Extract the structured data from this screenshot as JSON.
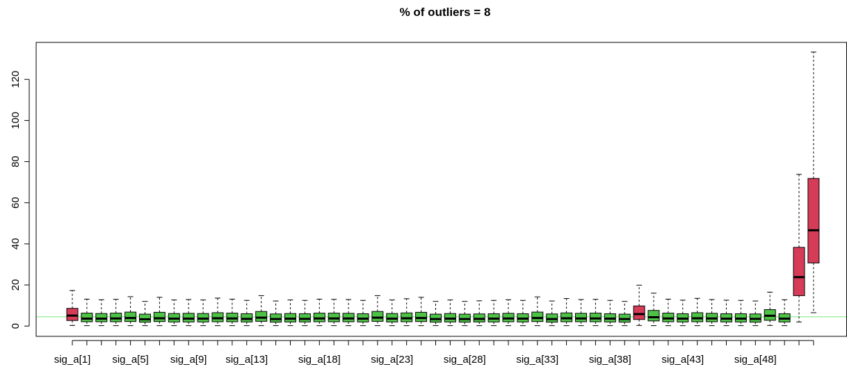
{
  "chart_data": {
    "type": "boxplot",
    "title": "% of outliers =  8",
    "xlabel": "",
    "ylabel": "",
    "ylim": [
      -5,
      138
    ],
    "yticks": [
      0,
      20,
      40,
      60,
      80,
      100,
      120
    ],
    "reference_line": {
      "y": 4.5,
      "color": "#90ee90"
    },
    "colors": {
      "normal": "#4ec246",
      "outlier": "#d63c58"
    },
    "x_tick_labels": [
      {
        "pos": 1,
        "label": "sig_a[1]"
      },
      {
        "pos": 5,
        "label": "sig_a[5]"
      },
      {
        "pos": 9,
        "label": "sig_a[9]"
      },
      {
        "pos": 13,
        "label": "sig_a[13]"
      },
      {
        "pos": 18,
        "label": "sig_a[18]"
      },
      {
        "pos": 23,
        "label": "sig_a[23]"
      },
      {
        "pos": 28,
        "label": "sig_a[28]"
      },
      {
        "pos": 33,
        "label": "sig_a[33]"
      },
      {
        "pos": 38,
        "label": "sig_a[38]"
      },
      {
        "pos": 43,
        "label": "sig_a[43]"
      },
      {
        "pos": 48,
        "label": "sig_a[48]"
      }
    ],
    "boxes": [
      {
        "pos": 1,
        "whisker_low": 0.3,
        "q1": 2.7,
        "median": 5.1,
        "q3": 8.6,
        "whisker_high": 17.3,
        "outlier": true
      },
      {
        "pos": 2,
        "whisker_low": 0.2,
        "q1": 2.1,
        "median": 3.6,
        "q3": 6.3,
        "whisker_high": 13.1,
        "outlier": false
      },
      {
        "pos": 3,
        "whisker_low": 0.2,
        "q1": 2.1,
        "median": 3.6,
        "q3": 6.1,
        "whisker_high": 12.8,
        "outlier": false
      },
      {
        "pos": 4,
        "whisker_low": 0.2,
        "q1": 2.1,
        "median": 3.7,
        "q3": 6.3,
        "whisker_high": 13.0,
        "outlier": false
      },
      {
        "pos": 5,
        "whisker_low": 0.2,
        "q1": 2.2,
        "median": 3.9,
        "q3": 6.8,
        "whisker_high": 14.3,
        "outlier": false
      },
      {
        "pos": 6,
        "whisker_low": 0.2,
        "q1": 1.9,
        "median": 3.3,
        "q3": 5.8,
        "whisker_high": 12.0,
        "outlier": false
      },
      {
        "pos": 7,
        "whisker_low": 0.2,
        "q1": 2.2,
        "median": 3.8,
        "q3": 6.7,
        "whisker_high": 14.0,
        "outlier": false
      },
      {
        "pos": 8,
        "whisker_low": 0.2,
        "q1": 2.0,
        "median": 3.6,
        "q3": 6.1,
        "whisker_high": 12.7,
        "outlier": false
      },
      {
        "pos": 9,
        "whisker_low": 0.2,
        "q1": 2.0,
        "median": 3.6,
        "q3": 6.2,
        "whisker_high": 12.9,
        "outlier": false
      },
      {
        "pos": 10,
        "whisker_low": 0.2,
        "q1": 2.0,
        "median": 3.6,
        "q3": 6.1,
        "whisker_high": 12.7,
        "outlier": false
      },
      {
        "pos": 11,
        "whisker_low": 0.2,
        "q1": 2.1,
        "median": 3.8,
        "q3": 6.5,
        "whisker_high": 13.6,
        "outlier": false
      },
      {
        "pos": 12,
        "whisker_low": 0.2,
        "q1": 2.1,
        "median": 3.7,
        "q3": 6.3,
        "whisker_high": 13.1,
        "outlier": false
      },
      {
        "pos": 13,
        "whisker_low": 0.2,
        "q1": 2.0,
        "median": 3.5,
        "q3": 6.0,
        "whisker_high": 12.5,
        "outlier": false
      },
      {
        "pos": 14,
        "whisker_low": 0.2,
        "q1": 2.3,
        "median": 4.1,
        "q3": 7.1,
        "whisker_high": 14.8,
        "outlier": false
      },
      {
        "pos": 15,
        "whisker_low": 0.2,
        "q1": 1.9,
        "median": 3.4,
        "q3": 5.9,
        "whisker_high": 12.2,
        "outlier": false
      },
      {
        "pos": 16,
        "whisker_low": 0.2,
        "q1": 2.0,
        "median": 3.6,
        "q3": 6.1,
        "whisker_high": 12.7,
        "outlier": false
      },
      {
        "pos": 17,
        "whisker_low": 0.2,
        "q1": 2.0,
        "median": 3.5,
        "q3": 6.0,
        "whisker_high": 12.5,
        "outlier": false
      },
      {
        "pos": 18,
        "whisker_low": 0.2,
        "q1": 2.1,
        "median": 3.7,
        "q3": 6.3,
        "whisker_high": 13.1,
        "outlier": false
      },
      {
        "pos": 19,
        "whisker_low": 0.2,
        "q1": 2.1,
        "median": 3.7,
        "q3": 6.3,
        "whisker_high": 13.0,
        "outlier": false
      },
      {
        "pos": 20,
        "whisker_low": 0.2,
        "q1": 2.1,
        "median": 3.7,
        "q3": 6.2,
        "whisker_high": 12.9,
        "outlier": false
      },
      {
        "pos": 21,
        "whisker_low": 0.2,
        "q1": 2.0,
        "median": 3.6,
        "q3": 6.0,
        "whisker_high": 12.5,
        "outlier": false
      },
      {
        "pos": 22,
        "whisker_low": 0.2,
        "q1": 2.3,
        "median": 4.1,
        "q3": 7.1,
        "whisker_high": 14.8,
        "outlier": false
      },
      {
        "pos": 23,
        "whisker_low": 0.2,
        "q1": 2.0,
        "median": 3.6,
        "q3": 6.1,
        "whisker_high": 12.7,
        "outlier": false
      },
      {
        "pos": 24,
        "whisker_low": 0.2,
        "q1": 2.1,
        "median": 3.8,
        "q3": 6.4,
        "whisker_high": 13.3,
        "outlier": false
      },
      {
        "pos": 25,
        "whisker_low": 0.2,
        "q1": 2.2,
        "median": 3.9,
        "q3": 6.7,
        "whisker_high": 14.0,
        "outlier": false
      },
      {
        "pos": 26,
        "whisker_low": 0.2,
        "q1": 1.9,
        "median": 3.4,
        "q3": 5.8,
        "whisker_high": 12.0,
        "outlier": false
      },
      {
        "pos": 27,
        "whisker_low": 0.2,
        "q1": 2.0,
        "median": 3.6,
        "q3": 6.1,
        "whisker_high": 12.7,
        "outlier": false
      },
      {
        "pos": 28,
        "whisker_low": 0.2,
        "q1": 1.9,
        "median": 3.4,
        "q3": 5.8,
        "whisker_high": 12.0,
        "outlier": false
      },
      {
        "pos": 29,
        "whisker_low": 0.2,
        "q1": 2.0,
        "median": 3.5,
        "q3": 5.9,
        "whisker_high": 12.3,
        "outlier": false
      },
      {
        "pos": 30,
        "whisker_low": 0.2,
        "q1": 2.0,
        "median": 3.6,
        "q3": 6.0,
        "whisker_high": 12.5,
        "outlier": false
      },
      {
        "pos": 31,
        "whisker_low": 0.2,
        "q1": 2.1,
        "median": 3.7,
        "q3": 6.2,
        "whisker_high": 12.8,
        "outlier": false
      },
      {
        "pos": 32,
        "whisker_low": 0.2,
        "q1": 2.0,
        "median": 3.6,
        "q3": 6.0,
        "whisker_high": 12.5,
        "outlier": false
      },
      {
        "pos": 33,
        "whisker_low": 0.2,
        "q1": 2.2,
        "median": 3.9,
        "q3": 6.8,
        "whisker_high": 14.2,
        "outlier": false
      },
      {
        "pos": 34,
        "whisker_low": 0.2,
        "q1": 1.9,
        "median": 3.4,
        "q3": 5.9,
        "whisker_high": 12.2,
        "outlier": false
      },
      {
        "pos": 35,
        "whisker_low": 0.2,
        "q1": 2.1,
        "median": 3.8,
        "q3": 6.4,
        "whisker_high": 13.4,
        "outlier": false
      },
      {
        "pos": 36,
        "whisker_low": 0.2,
        "q1": 2.1,
        "median": 3.7,
        "q3": 6.2,
        "whisker_high": 12.9,
        "outlier": false
      },
      {
        "pos": 37,
        "whisker_low": 0.2,
        "q1": 2.1,
        "median": 3.7,
        "q3": 6.3,
        "whisker_high": 13.0,
        "outlier": false
      },
      {
        "pos": 38,
        "whisker_low": 0.2,
        "q1": 2.0,
        "median": 3.6,
        "q3": 6.0,
        "whisker_high": 12.5,
        "outlier": false
      },
      {
        "pos": 39,
        "whisker_low": 0.2,
        "q1": 1.9,
        "median": 3.4,
        "q3": 5.8,
        "whisker_high": 12.0,
        "outlier": false
      },
      {
        "pos": 40,
        "whisker_low": 0.3,
        "q1": 3.2,
        "median": 5.8,
        "q3": 9.8,
        "whisker_high": 19.9,
        "outlier": true
      },
      {
        "pos": 41,
        "whisker_low": 0.2,
        "q1": 2.5,
        "median": 4.3,
        "q3": 7.6,
        "whisker_high": 16.0,
        "outlier": false
      },
      {
        "pos": 42,
        "whisker_low": 0.2,
        "q1": 2.1,
        "median": 3.7,
        "q3": 6.3,
        "whisker_high": 13.1,
        "outlier": false
      },
      {
        "pos": 43,
        "whisker_low": 0.2,
        "q1": 2.0,
        "median": 3.6,
        "q3": 6.0,
        "whisker_high": 12.6,
        "outlier": false
      },
      {
        "pos": 44,
        "whisker_low": 0.2,
        "q1": 2.1,
        "median": 3.8,
        "q3": 6.5,
        "whisker_high": 13.5,
        "outlier": false
      },
      {
        "pos": 45,
        "whisker_low": 0.2,
        "q1": 2.1,
        "median": 3.7,
        "q3": 6.2,
        "whisker_high": 12.9,
        "outlier": false
      },
      {
        "pos": 46,
        "whisker_low": 0.2,
        "q1": 2.0,
        "median": 3.6,
        "q3": 6.0,
        "whisker_high": 12.6,
        "outlier": false
      },
      {
        "pos": 47,
        "whisker_low": 0.2,
        "q1": 2.0,
        "median": 3.6,
        "q3": 6.0,
        "whisker_high": 12.5,
        "outlier": false
      },
      {
        "pos": 48,
        "whisker_low": 0.2,
        "q1": 1.9,
        "median": 3.5,
        "q3": 5.9,
        "whisker_high": 12.2,
        "outlier": false
      },
      {
        "pos": 49,
        "whisker_low": 0.3,
        "q1": 2.8,
        "median": 5.0,
        "q3": 8.0,
        "whisker_high": 16.5,
        "outlier": false
      },
      {
        "pos": 50,
        "whisker_low": 0.2,
        "q1": 2.0,
        "median": 3.6,
        "q3": 6.0,
        "whisker_high": 12.8,
        "outlier": false
      },
      {
        "pos": 51,
        "whisker_low": 2.0,
        "q1": 14.8,
        "median": 23.8,
        "q3": 38.3,
        "whisker_high": 73.8,
        "outlier": true
      },
      {
        "pos": 52,
        "whisker_low": 6.5,
        "q1": 30.7,
        "median": 46.6,
        "q3": 71.8,
        "whisker_high": 133.3,
        "outlier": true
      }
    ]
  }
}
